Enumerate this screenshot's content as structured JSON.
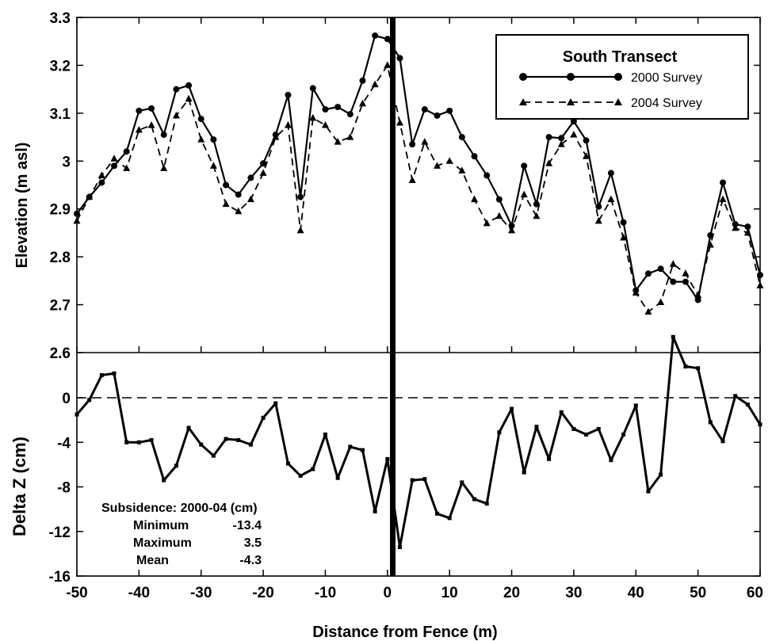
{
  "chart_data": [
    {
      "type": "line",
      "panel": "top",
      "ylabel": "Elevation (m asl)",
      "ylim": [
        2.6,
        3.3
      ],
      "yticks": [
        "2.6",
        "2.7",
        "2.8",
        "2.9",
        "3",
        "3.1",
        "3.2",
        "3.3"
      ],
      "xlim": [
        -50,
        60
      ],
      "grid": false,
      "legend": {
        "title": "South Transect",
        "position": "top-right",
        "entries": [
          "2000 Survey",
          "2004 Survey"
        ]
      },
      "series": [
        {
          "name": "2000 Survey",
          "style": "solid",
          "marker": "circle",
          "x": [
            -50,
            -48,
            -46,
            -44,
            -42,
            -40,
            -38,
            -36,
            -34,
            -32,
            -30,
            -28,
            -26,
            -24,
            -22,
            -20,
            -18,
            -16,
            -14,
            -12,
            -10,
            -8,
            -6,
            -4,
            -2,
            0,
            2,
            4,
            6,
            8,
            10,
            12,
            14,
            16,
            18,
            20,
            22,
            24,
            26,
            28,
            30,
            32,
            34,
            36,
            38,
            40,
            42,
            44,
            46,
            48,
            50,
            52,
            54,
            56,
            58,
            60
          ],
          "y": [
            2.89,
            2.925,
            2.955,
            2.99,
            3.02,
            3.105,
            3.11,
            3.055,
            3.15,
            3.158,
            3.088,
            3.045,
            2.95,
            2.93,
            2.965,
            2.995,
            3.055,
            3.138,
            2.925,
            3.152,
            3.108,
            3.113,
            3.098,
            3.168,
            3.262,
            3.255,
            3.215,
            3.035,
            3.108,
            3.095,
            3.105,
            3.05,
            3.01,
            2.97,
            2.92,
            2.865,
            2.99,
            2.91,
            3.05,
            3.048,
            3.083,
            3.043,
            2.905,
            2.975,
            2.872,
            2.73,
            2.765,
            2.775,
            2.748,
            2.748,
            2.71,
            2.845,
            2.955,
            2.868,
            2.863,
            2.762
          ]
        },
        {
          "name": "2004 Survey",
          "style": "dashed",
          "marker": "triangle",
          "x": [
            -50,
            -48,
            -46,
            -44,
            -42,
            -40,
            -38,
            -36,
            -34,
            -32,
            -30,
            -28,
            -26,
            -24,
            -22,
            -20,
            -18,
            -16,
            -14,
            -12,
            -10,
            -8,
            -6,
            -4,
            -2,
            0,
            2,
            4,
            6,
            8,
            10,
            12,
            14,
            16,
            18,
            20,
            22,
            24,
            26,
            28,
            30,
            32,
            34,
            36,
            38,
            40,
            42,
            44,
            46,
            48,
            50,
            52,
            54,
            56,
            58,
            60
          ],
          "y": [
            2.875,
            2.925,
            2.97,
            3.005,
            2.985,
            3.065,
            3.075,
            2.985,
            3.095,
            3.13,
            3.045,
            2.99,
            2.91,
            2.895,
            2.92,
            2.975,
            3.05,
            3.075,
            2.855,
            3.09,
            3.075,
            3.04,
            3.05,
            3.12,
            3.16,
            3.2,
            3.08,
            2.96,
            3.04,
            2.99,
            3.0,
            2.98,
            2.92,
            2.87,
            2.885,
            2.855,
            2.93,
            2.885,
            2.995,
            3.035,
            3.055,
            3.01,
            2.875,
            2.92,
            2.84,
            2.725,
            2.685,
            2.705,
            2.785,
            2.765,
            2.72,
            2.825,
            2.92,
            2.86,
            2.85,
            2.74
          ]
        }
      ]
    },
    {
      "type": "line",
      "panel": "bottom",
      "xlabel": "Distance from Fence (m)",
      "ylabel": "Delta Z (cm)",
      "xlim": [
        -50,
        60
      ],
      "xticks": [
        "-50",
        "-40",
        "-30",
        "-20",
        "-10",
        "0",
        "10",
        "20",
        "30",
        "40",
        "50",
        "60"
      ],
      "ylim": [
        -16,
        2.6
      ],
      "yticks": [
        "-16",
        "-12",
        "-8",
        "-4",
        "0",
        "2.6"
      ],
      "reference_line": 0,
      "series": [
        {
          "marker": "square",
          "x": [
            -50,
            -48,
            -46,
            -44,
            -42,
            -40,
            -38,
            -36,
            -34,
            -32,
            -30,
            -28,
            -26,
            -24,
            -22,
            -20,
            -18,
            -16,
            -14,
            -12,
            -10,
            -8,
            -6,
            -4,
            -2,
            0,
            2,
            4,
            6,
            8,
            10,
            12,
            14,
            16,
            18,
            20,
            22,
            24,
            26,
            28,
            30,
            32,
            34,
            36,
            38,
            40,
            42,
            44,
            46,
            48,
            50,
            52,
            54,
            56,
            58,
            60
          ],
          "y": [
            -1.5,
            -0.2,
            1.3,
            1.4,
            -4.0,
            -4.0,
            -3.8,
            -7.4,
            -6.1,
            -2.7,
            -4.2,
            -5.2,
            -3.7,
            -3.8,
            -4.2,
            -1.8,
            -0.5,
            -5.9,
            -7.0,
            -6.4,
            -3.3,
            -7.2,
            -4.4,
            -4.7,
            -10.2,
            -5.5,
            -13.4,
            -7.4,
            -7.3,
            -10.4,
            -10.8,
            -7.6,
            -9.1,
            -9.5,
            -3.1,
            -1.0,
            -6.7,
            -2.6,
            -5.5,
            -1.3,
            -2.8,
            -3.3,
            -2.8,
            -5.6,
            -3.3,
            -0.7,
            -8.4,
            -6.9,
            3.5,
            1.8,
            1.7,
            -2.2,
            -3.9,
            0.1,
            -0.6,
            -2.4
          ]
        }
      ],
      "annotation": {
        "title": "Subsidence: 2000-04 (cm)",
        "rows": [
          {
            "label": "Minimum",
            "value": "-13.4"
          },
          {
            "label": "Maximum",
            "value": "3.5"
          },
          {
            "label": "Mean",
            "value": "-4.3"
          }
        ]
      }
    }
  ]
}
